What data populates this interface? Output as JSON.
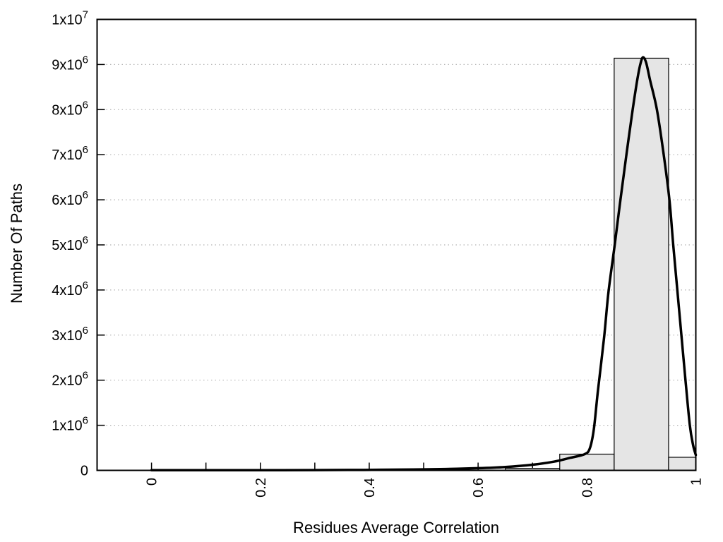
{
  "chart_data": {
    "type": "histogram_with_fit_curve",
    "title": "",
    "xlabel": "Residues Average Correlation",
    "ylabel": "Number Of Paths",
    "xlim": [
      -0.1,
      1.0
    ],
    "ylim": [
      0,
      10000000
    ],
    "grid": "horizontal-dotted",
    "legend": "none",
    "colors": {
      "background": "#ffffff",
      "axis": "#000000",
      "grid": "#b5b5b5",
      "bar_fill": "#e5e5e5",
      "bar_border": "#000000",
      "curve": "#000000",
      "text": "#000000"
    },
    "x_ticks": {
      "step": 0.1,
      "range": [
        0,
        1
      ],
      "rotation_deg": -90,
      "labels": [
        {
          "value": 0,
          "label": "0"
        },
        {
          "value": 0.2,
          "label": "0.2"
        },
        {
          "value": 0.4,
          "label": "0.4"
        },
        {
          "value": 0.6,
          "label": "0.6"
        },
        {
          "value": 0.8,
          "label": "0.8"
        },
        {
          "value": 1,
          "label": "1"
        }
      ]
    },
    "y_ticks": [
      {
        "value": 0,
        "label": "0"
      },
      {
        "value": 1000000,
        "mantissa": "1x10",
        "exponent": "6"
      },
      {
        "value": 2000000,
        "mantissa": "2x10",
        "exponent": "6"
      },
      {
        "value": 3000000,
        "mantissa": "3x10",
        "exponent": "6"
      },
      {
        "value": 4000000,
        "mantissa": "4x10",
        "exponent": "6"
      },
      {
        "value": 5000000,
        "mantissa": "5x10",
        "exponent": "6"
      },
      {
        "value": 6000000,
        "mantissa": "6x10",
        "exponent": "6"
      },
      {
        "value": 7000000,
        "mantissa": "7x10",
        "exponent": "6"
      },
      {
        "value": 8000000,
        "mantissa": "8x10",
        "exponent": "6"
      },
      {
        "value": 9000000,
        "mantissa": "9x10",
        "exponent": "6"
      },
      {
        "value": 10000000,
        "mantissa": "1x10",
        "exponent": "7"
      }
    ],
    "bars": [
      {
        "x0": 0.65,
        "x1": 0.75,
        "count": 45000
      },
      {
        "x0": 0.75,
        "x1": 0.85,
        "count": 360000
      },
      {
        "x0": 0.85,
        "x1": 0.95,
        "count": 9140000
      },
      {
        "x0": 0.95,
        "x1": 1.0,
        "count": 290000
      }
    ],
    "curve_points": [
      [
        0.0,
        3000
      ],
      [
        0.06,
        3000
      ],
      [
        0.12,
        3000
      ],
      [
        0.18,
        3500
      ],
      [
        0.24,
        4500
      ],
      [
        0.3,
        6000
      ],
      [
        0.36,
        9000
      ],
      [
        0.42,
        13000
      ],
      [
        0.48,
        20000
      ],
      [
        0.54,
        30000
      ],
      [
        0.6,
        48000
      ],
      [
        0.65,
        75000
      ],
      [
        0.7,
        125000
      ],
      [
        0.74,
        195000
      ],
      [
        0.77,
        280000
      ],
      [
        0.795,
        355000
      ],
      [
        0.805,
        480000
      ],
      [
        0.8125,
        900000
      ],
      [
        0.82,
        1750000
      ],
      [
        0.8315,
        2950000
      ],
      [
        0.8395,
        3950000
      ],
      [
        0.851,
        5000000
      ],
      [
        0.8615,
        6000000
      ],
      [
        0.8725,
        7000000
      ],
      [
        0.884,
        8000000
      ],
      [
        0.893,
        8700000
      ],
      [
        0.899,
        9050000
      ],
      [
        0.9035,
        9160000
      ],
      [
        0.909,
        9030000
      ],
      [
        0.916,
        8650000
      ],
      [
        0.9285,
        8000000
      ],
      [
        0.941,
        7000000
      ],
      [
        0.9515,
        6000000
      ],
      [
        0.9585,
        5000000
      ],
      [
        0.966,
        4000000
      ],
      [
        0.9735,
        3000000
      ],
      [
        0.981,
        2000000
      ],
      [
        0.989,
        1000000
      ],
      [
        0.995,
        560000
      ],
      [
        1.0,
        340000
      ]
    ]
  }
}
